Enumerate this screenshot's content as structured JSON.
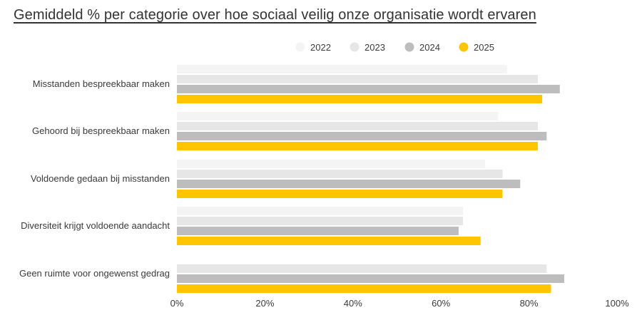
{
  "title": "Gemiddeld % per categorie over hoe sociaal veilig onze organisatie wordt ervaren",
  "chart_data": {
    "type": "bar",
    "orientation": "horizontal",
    "categories": [
      "Misstanden bespreekbaar maken",
      "Gehoord bij bespreekbaar maken",
      "Voldoende gedaan bij misstanden",
      "Diversiteit krijgt voldoende aandacht",
      "Geen ruimte voor ongewenst gedrag"
    ],
    "series": [
      {
        "name": "2022",
        "color": "#f4f4f4",
        "values": [
          75,
          73,
          70,
          65,
          null
        ]
      },
      {
        "name": "2023",
        "color": "#e6e6e6",
        "values": [
          82,
          82,
          74,
          65,
          84
        ]
      },
      {
        "name": "2024",
        "color": "#bdbdbd",
        "values": [
          87,
          84,
          78,
          64,
          88
        ]
      },
      {
        "name": "2025",
        "color": "#ffc600",
        "values": [
          83,
          82,
          74,
          69,
          85
        ]
      }
    ],
    "xlim": [
      0,
      100
    ],
    "xticks": [
      "0%",
      "20%",
      "40%",
      "60%",
      "80%",
      "100%"
    ],
    "legend_position": "top",
    "grid": false
  }
}
